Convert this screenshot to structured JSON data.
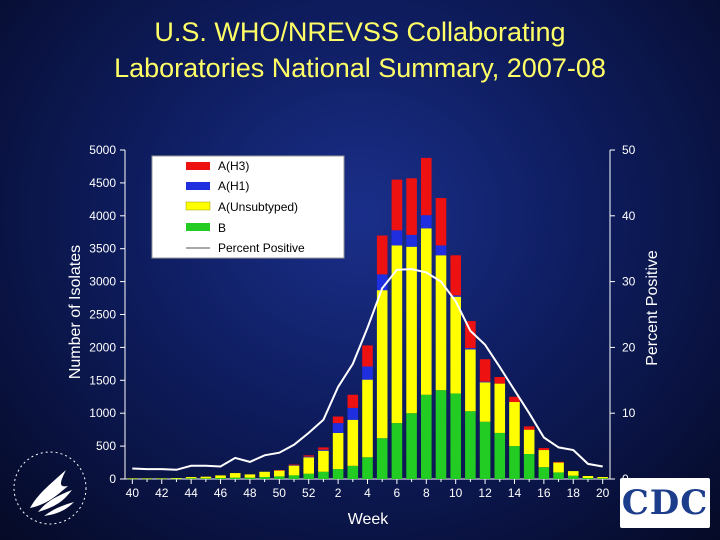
{
  "title": {
    "line1": "U.S. WHO/NREVSS Collaborating",
    "line2": "Laboratories National Summary, 2007-08"
  },
  "logos": {
    "right": "CDC",
    "left_icon": "hhs-eagle-icon"
  },
  "chart_data": {
    "type": "bar",
    "stacked": true,
    "xlabel": "Week",
    "ylabel": "Number of Isolates",
    "y2label": "Percent Positive",
    "ylim": [
      0,
      5000
    ],
    "y2lim": [
      0,
      50
    ],
    "yticks": [
      "0",
      "500",
      "1000",
      "1500",
      "2000",
      "2500",
      "3000",
      "3500",
      "4000",
      "4500",
      "5000"
    ],
    "y2ticks": [
      "0",
      "10",
      "20",
      "30",
      "40",
      "50"
    ],
    "xticks": [
      "40",
      "42",
      "44",
      "46",
      "48",
      "50",
      "52",
      "2",
      "4",
      "6",
      "8",
      "10",
      "12",
      "14",
      "16",
      "18",
      "20"
    ],
    "weeks": [
      40,
      41,
      42,
      43,
      44,
      45,
      46,
      47,
      48,
      49,
      50,
      51,
      52,
      1,
      2,
      3,
      4,
      5,
      6,
      7,
      8,
      9,
      10,
      11,
      12,
      13,
      14,
      15,
      16,
      17,
      18,
      19,
      20
    ],
    "series": [
      {
        "name": "B",
        "color": "#22cc22",
        "values": [
          5,
          5,
          5,
          5,
          10,
          10,
          15,
          20,
          20,
          30,
          40,
          55,
          80,
          110,
          150,
          200,
          330,
          620,
          850,
          1000,
          1280,
          1350,
          1300,
          1030,
          870,
          700,
          500,
          380,
          180,
          100,
          50,
          15,
          10
        ]
      },
      {
        "name": "A(Unsubtyped)",
        "color": "#ffff00",
        "values": [
          5,
          5,
          5,
          10,
          20,
          25,
          40,
          70,
          50,
          80,
          90,
          150,
          250,
          320,
          550,
          700,
          1180,
          2250,
          2700,
          2530,
          2530,
          2050,
          1470,
          940,
          600,
          750,
          670,
          370,
          260,
          150,
          70,
          30,
          20
        ]
      },
      {
        "name": "A(H1)",
        "color": "#1f2fe0",
        "values": [
          0,
          0,
          0,
          0,
          0,
          0,
          0,
          0,
          0,
          0,
          0,
          5,
          10,
          15,
          150,
          180,
          200,
          240,
          230,
          180,
          200,
          150,
          20,
          20,
          10,
          0,
          0,
          0,
          0,
          0,
          0,
          0,
          0
        ]
      },
      {
        "name": "A(H3)",
        "color": "#ee1111",
        "values": [
          0,
          0,
          0,
          0,
          0,
          0,
          0,
          0,
          0,
          0,
          5,
          10,
          20,
          35,
          100,
          200,
          320,
          590,
          770,
          860,
          870,
          720,
          610,
          410,
          340,
          100,
          80,
          50,
          30,
          10,
          0,
          0,
          0
        ]
      }
    ],
    "line": {
      "name": "Percent Positive",
      "color": "#ffffff",
      "values": [
        1.6,
        1.5,
        1.5,
        1.4,
        2.0,
        2.0,
        1.9,
        3.2,
        2.6,
        3.6,
        4.0,
        5.2,
        7.0,
        9.0,
        14.0,
        17.5,
        23.0,
        29.0,
        31.8,
        31.9,
        31.4,
        30.0,
        27.0,
        22.5,
        20.4,
        17.0,
        13.5,
        10.0,
        6.3,
        4.8,
        4.4,
        2.3,
        1.9
      ]
    },
    "legend": {
      "placement": "top-left",
      "entries": [
        "A(H3)",
        "A(H1)",
        "A(Unsubtyped)",
        "B",
        "Percent Positive"
      ]
    },
    "grid": false
  }
}
